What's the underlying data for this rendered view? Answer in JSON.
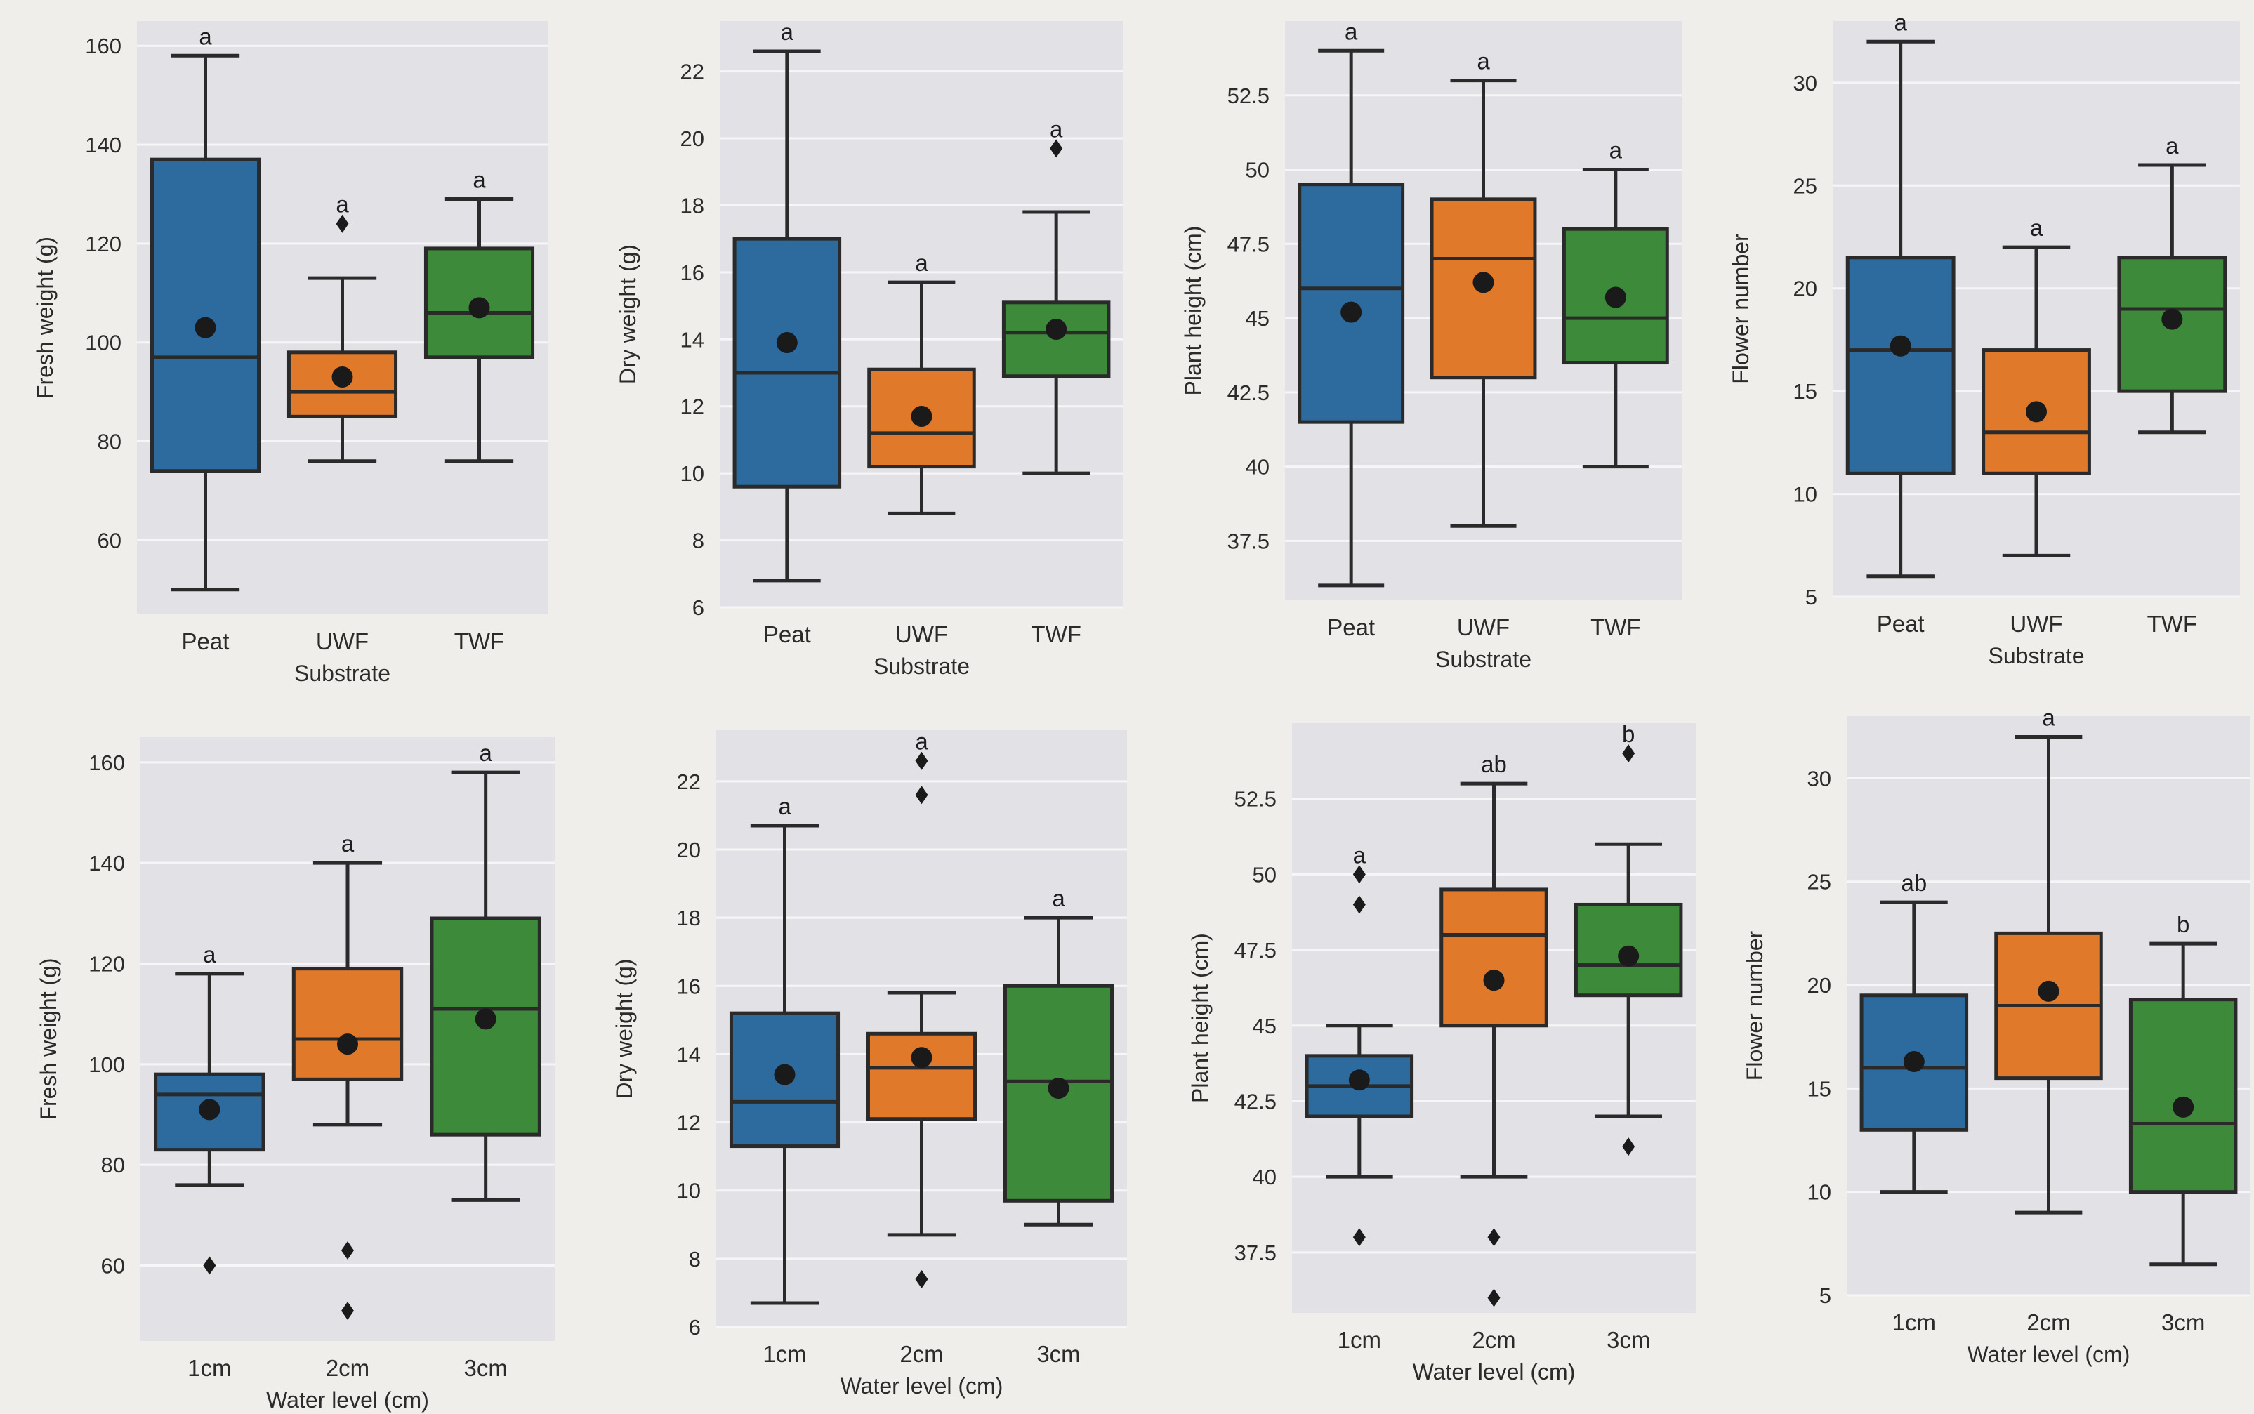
{
  "chart_data": [
    {
      "type": "box",
      "xlabel": "Substrate",
      "ylabel": "Fresh weight (g)",
      "yticks": [
        60,
        80,
        100,
        120,
        140,
        160
      ],
      "ylim": [
        45,
        165
      ],
      "categories": [
        "Peat",
        "UWF",
        "TWF"
      ],
      "boxes": [
        {
          "min": 50,
          "q1": 74,
          "median": 97,
          "q3": 137,
          "max": 158,
          "mean": 103,
          "outliers": [],
          "letter": "a"
        },
        {
          "min": 76,
          "q1": 85,
          "median": 90,
          "q3": 98,
          "max": 113,
          "mean": 93,
          "outliers": [
            124
          ],
          "letter": "a"
        },
        {
          "min": 76,
          "q1": 97,
          "median": 106,
          "q3": 119,
          "max": 129,
          "mean": 107,
          "outliers": [],
          "letter": "a"
        }
      ]
    },
    {
      "type": "box",
      "xlabel": "Substrate",
      "ylabel": "Dry weight (g)",
      "yticks": [
        6,
        8,
        10,
        12,
        14,
        16,
        18,
        20,
        22
      ],
      "ylim": [
        6,
        23.5
      ],
      "categories": [
        "Peat",
        "UWF",
        "TWF"
      ],
      "boxes": [
        {
          "min": 6.8,
          "q1": 9.6,
          "median": 13.0,
          "q3": 17.0,
          "max": 22.6,
          "mean": 13.9,
          "outliers": [],
          "letter": "a"
        },
        {
          "min": 8.8,
          "q1": 10.2,
          "median": 11.2,
          "q3": 13.1,
          "max": 15.7,
          "mean": 11.7,
          "outliers": [],
          "letter": "a"
        },
        {
          "min": 10.0,
          "q1": 12.9,
          "median": 14.2,
          "q3": 15.1,
          "max": 17.8,
          "mean": 14.3,
          "outliers": [
            19.7
          ],
          "letter": "a"
        }
      ]
    },
    {
      "type": "box",
      "xlabel": "Substrate",
      "ylabel": "Plant height (cm)",
      "yticks": [
        37.5,
        40.0,
        42.5,
        45.0,
        47.5,
        50.0,
        52.5
      ],
      "ylim": [
        35.5,
        55
      ],
      "categories": [
        "Peat",
        "UWF",
        "TWF"
      ],
      "boxes": [
        {
          "min": 36.0,
          "q1": 41.5,
          "median": 46.0,
          "q3": 49.5,
          "max": 54.0,
          "mean": 45.2,
          "outliers": [],
          "letter": "a"
        },
        {
          "min": 38.0,
          "q1": 43.0,
          "median": 47.0,
          "q3": 49.0,
          "max": 53.0,
          "mean": 46.2,
          "outliers": [],
          "letter": "a"
        },
        {
          "min": 40.0,
          "q1": 43.5,
          "median": 45.0,
          "q3": 48.0,
          "max": 50.0,
          "mean": 45.7,
          "outliers": [],
          "letter": "a"
        }
      ]
    },
    {
      "type": "box",
      "xlabel": "Substrate",
      "ylabel": "Flower number",
      "yticks": [
        5,
        10,
        15,
        20,
        25,
        30
      ],
      "ylim": [
        5,
        33
      ],
      "categories": [
        "Peat",
        "UWF",
        "TWF"
      ],
      "boxes": [
        {
          "min": 6,
          "q1": 11,
          "median": 17,
          "q3": 21.5,
          "max": 32,
          "mean": 17.2,
          "outliers": [],
          "letter": "a"
        },
        {
          "min": 7,
          "q1": 11,
          "median": 13,
          "q3": 17,
          "max": 22,
          "mean": 14,
          "outliers": [],
          "letter": "a"
        },
        {
          "min": 13,
          "q1": 15,
          "median": 19,
          "q3": 21.5,
          "max": 26,
          "mean": 18.5,
          "outliers": [],
          "letter": "a"
        }
      ]
    },
    {
      "type": "box",
      "xlabel": "Water level (cm)",
      "ylabel": "Fresh weight (g)",
      "yticks": [
        60,
        80,
        100,
        120,
        140,
        160
      ],
      "ylim": [
        45,
        165
      ],
      "categories": [
        "1cm",
        "2cm",
        "3cm"
      ],
      "boxes": [
        {
          "min": 76,
          "q1": 83,
          "median": 94,
          "q3": 98,
          "max": 118,
          "mean": 91,
          "outliers": [
            60
          ],
          "letter": "a"
        },
        {
          "min": 88,
          "q1": 97,
          "median": 105,
          "q3": 119,
          "max": 140,
          "mean": 104,
          "outliers": [
            63,
            51
          ],
          "letter": "a"
        },
        {
          "min": 73,
          "q1": 86,
          "median": 111,
          "q3": 129,
          "max": 158,
          "mean": 109,
          "outliers": [],
          "letter": "a"
        }
      ]
    },
    {
      "type": "box",
      "xlabel": "Water level (cm)",
      "ylabel": "Dry weight (g)",
      "yticks": [
        6,
        8,
        10,
        12,
        14,
        16,
        18,
        20,
        22
      ],
      "ylim": [
        6,
        23.5
      ],
      "categories": [
        "1cm",
        "2cm",
        "3cm"
      ],
      "boxes": [
        {
          "min": 6.7,
          "q1": 11.3,
          "median": 12.6,
          "q3": 15.2,
          "max": 20.7,
          "mean": 13.4,
          "outliers": [],
          "letter": "a"
        },
        {
          "min": 8.7,
          "q1": 12.1,
          "median": 13.6,
          "q3": 14.6,
          "max": 15.8,
          "mean": 13.9,
          "outliers": [
            22.6,
            21.6,
            7.4
          ],
          "letter": "a"
        },
        {
          "min": 9.0,
          "q1": 9.7,
          "median": 13.2,
          "q3": 16.0,
          "max": 18.0,
          "mean": 13.0,
          "outliers": [],
          "letter": "a"
        }
      ]
    },
    {
      "type": "box",
      "xlabel": "Water level (cm)",
      "ylabel": "Plant height (cm)",
      "yticks": [
        37.5,
        40.0,
        42.5,
        45.0,
        47.5,
        50.0,
        52.5
      ],
      "ylim": [
        35.5,
        55
      ],
      "categories": [
        "1cm",
        "2cm",
        "3cm"
      ],
      "boxes": [
        {
          "min": 40.0,
          "q1": 42.0,
          "median": 43.0,
          "q3": 44.0,
          "max": 45.0,
          "mean": 43.2,
          "outliers": [
            50.0,
            49.0,
            38.0
          ],
          "letter": "a"
        },
        {
          "min": 40.0,
          "q1": 45.0,
          "median": 48.0,
          "q3": 49.5,
          "max": 53.0,
          "mean": 46.5,
          "outliers": [
            38.0,
            36.0
          ],
          "letter": "ab"
        },
        {
          "min": 42.0,
          "q1": 46.0,
          "median": 47.0,
          "q3": 49.0,
          "max": 51.0,
          "mean": 47.3,
          "outliers": [
            54.0,
            41.0
          ],
          "letter": "b"
        }
      ]
    },
    {
      "type": "box",
      "xlabel": "Water level (cm)",
      "ylabel": "Flower number",
      "yticks": [
        5,
        10,
        15,
        20,
        25,
        30
      ],
      "ylim": [
        5,
        33
      ],
      "categories": [
        "1cm",
        "2cm",
        "3cm"
      ],
      "boxes": [
        {
          "min": 10,
          "q1": 13,
          "median": 16,
          "q3": 19.5,
          "max": 24,
          "mean": 16.3,
          "outliers": [],
          "letter": "ab"
        },
        {
          "min": 9,
          "q1": 15.5,
          "median": 19,
          "q3": 22.5,
          "max": 32,
          "mean": 19.7,
          "outliers": [],
          "letter": "a"
        },
        {
          "min": 6.5,
          "q1": 10,
          "median": 13.3,
          "q3": 19.3,
          "max": 22,
          "mean": 14.1,
          "outliers": [],
          "letter": "b"
        }
      ]
    }
  ],
  "colors": {
    "box1": "#2d6b9e",
    "box2": "#e07a2a",
    "box3": "#3c8a3a",
    "panel": "#e2e2e6",
    "grid": "#f6f6f8",
    "line": "#2a2a2a"
  }
}
